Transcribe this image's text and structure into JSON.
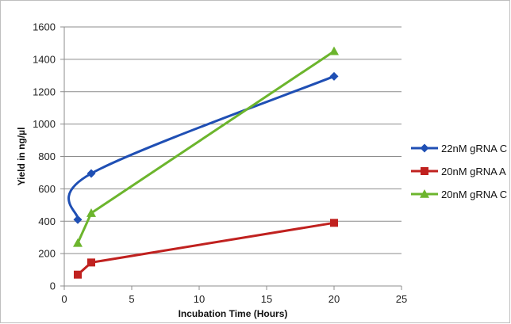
{
  "chart_data": {
    "type": "line",
    "title": "",
    "xlabel": "Incubation Time (Hours)",
    "ylabel": "Yield in ng/µl",
    "xlim": [
      0,
      25
    ],
    "ylim": [
      0,
      1600
    ],
    "x_ticks": [
      0,
      5,
      10,
      15,
      20,
      25
    ],
    "y_ticks": [
      0,
      200,
      400,
      600,
      800,
      1000,
      1200,
      1400,
      1600
    ],
    "grid": "horizontal",
    "legend_position": "right",
    "series": [
      {
        "name": "22nM gRNA C",
        "color": "#1f4fb4",
        "marker": "diamond",
        "smooth": true,
        "points": [
          {
            "x": 1,
            "y": 410
          },
          {
            "x": 2,
            "y": 695
          },
          {
            "x": 20,
            "y": 1295
          }
        ]
      },
      {
        "name": "20nM gRNA A",
        "color": "#c0211f",
        "marker": "square",
        "smooth": false,
        "points": [
          {
            "x": 1,
            "y": 70
          },
          {
            "x": 2,
            "y": 145
          },
          {
            "x": 20,
            "y": 390
          }
        ]
      },
      {
        "name": "20nM gRNA C",
        "color": "#6cb52d",
        "marker": "triangle",
        "smooth": false,
        "points": [
          {
            "x": 1,
            "y": 265
          },
          {
            "x": 2,
            "y": 450
          },
          {
            "x": 20,
            "y": 1450
          }
        ]
      }
    ]
  }
}
